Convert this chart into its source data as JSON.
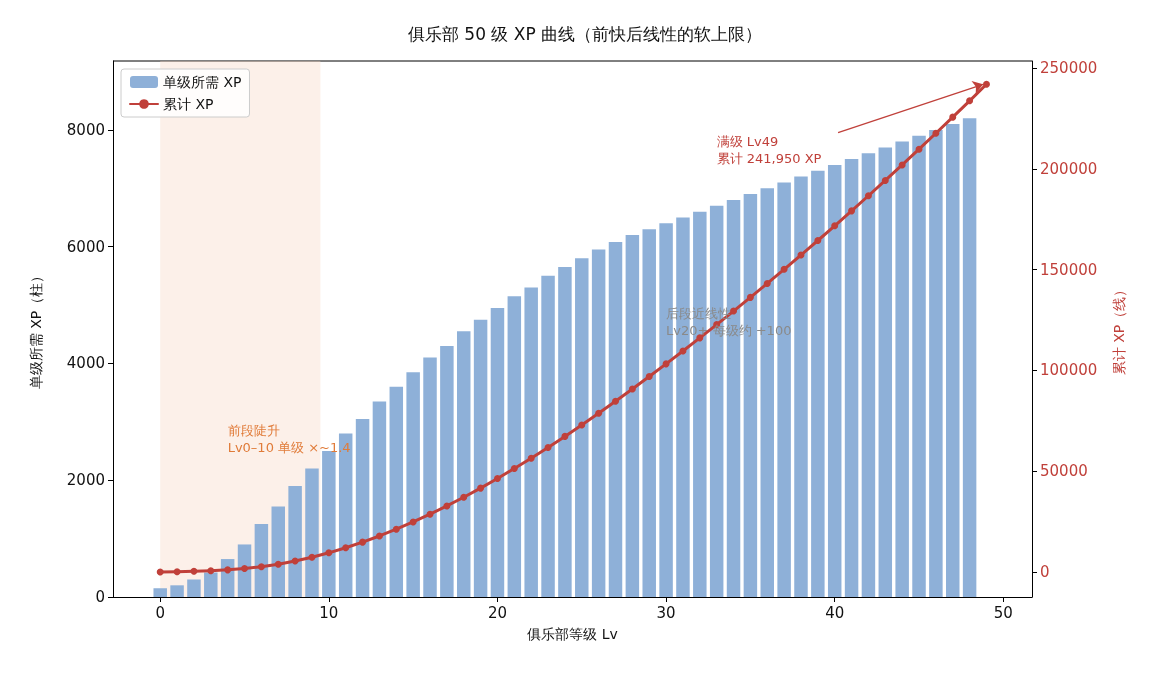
{
  "chart_data": {
    "type": "bar",
    "title": "俱乐部 50 级 XP 曲线（前快后线性的软上限）",
    "xlabel": "俱乐部等级 Lv",
    "ylabel": "单级所需 XP（柱）",
    "y2label": "累计 XP（线）",
    "xlim": [
      -2.8,
      51.7
    ],
    "xticks": [
      0,
      10,
      20,
      30,
      40,
      50
    ],
    "ylim": [
      0,
      9180
    ],
    "yticks": [
      0,
      2000,
      4000,
      6000,
      8000
    ],
    "y2lim": [
      -12400,
      253500
    ],
    "y2ticks": [
      0,
      50000,
      100000,
      150000,
      200000,
      250000
    ],
    "series": [
      {
        "name": "单级所需 XP",
        "color": "#8eb0d8",
        "x": [
          0,
          1,
          2,
          3,
          4,
          5,
          6,
          7,
          8,
          9,
          10,
          11,
          12,
          13,
          14,
          15,
          16,
          17,
          18,
          19,
          20,
          21,
          22,
          23,
          24,
          25,
          26,
          27,
          28,
          29,
          30,
          31,
          32,
          33,
          34,
          35,
          36,
          37,
          38,
          39,
          40,
          41,
          42,
          43,
          44,
          45,
          46,
          47,
          48
        ],
        "values": [
          150,
          200,
          300,
          420,
          650,
          900,
          1250,
          1550,
          1900,
          2200,
          2500,
          2800,
          3050,
          3350,
          3600,
          3850,
          4100,
          4300,
          4550,
          4750,
          4950,
          5150,
          5300,
          5500,
          5650,
          5800,
          5950,
          6080,
          6200,
          6300,
          6400,
          6500,
          6600,
          6700,
          6800,
          6900,
          7000,
          7100,
          7200,
          7300,
          7400,
          7500,
          7600,
          7700,
          7800,
          7900,
          8000,
          8100,
          8200
        ]
      },
      {
        "name": "累计 XP",
        "type": "line",
        "axis": "y2",
        "color": "#c0403a",
        "marker": "circle",
        "x": [
          0,
          1,
          2,
          3,
          4,
          5,
          6,
          7,
          8,
          9,
          10,
          11,
          12,
          13,
          14,
          15,
          16,
          17,
          18,
          19,
          20,
          21,
          22,
          23,
          24,
          25,
          26,
          27,
          28,
          29,
          30,
          31,
          32,
          33,
          34,
          35,
          36,
          37,
          38,
          39,
          40,
          41,
          42,
          43,
          44,
          45,
          46,
          47,
          48,
          49
        ],
        "values": [
          0,
          150,
          350,
          650,
          1070,
          1720,
          2620,
          3870,
          5420,
          7320,
          9520,
          12020,
          14820,
          17870,
          21220,
          24820,
          28670,
          32770,
          37070,
          41620,
          46370,
          51320,
          56470,
          61770,
          67270,
          72920,
          78720,
          84670,
          90750,
          96950,
          103250,
          109650,
          116150,
          122750,
          129450,
          136250,
          143150,
          150150,
          157250,
          164450,
          171750,
          179150,
          186650,
          194250,
          201950,
          209750,
          217650,
          225650,
          233750,
          241950
        ]
      }
    ],
    "bands": [
      {
        "axis": "x",
        "from": 0,
        "to": 9.5,
        "color": "#f5d5bf"
      }
    ],
    "annotations": [
      "前段陡升\nLv0–10 单级 ×~1.4",
      "后段近线性\nLv20+ 每级约 +100",
      "满级 Lv49\n累计 241,950 XP"
    ],
    "legend": "top left",
    "grid": false
  }
}
